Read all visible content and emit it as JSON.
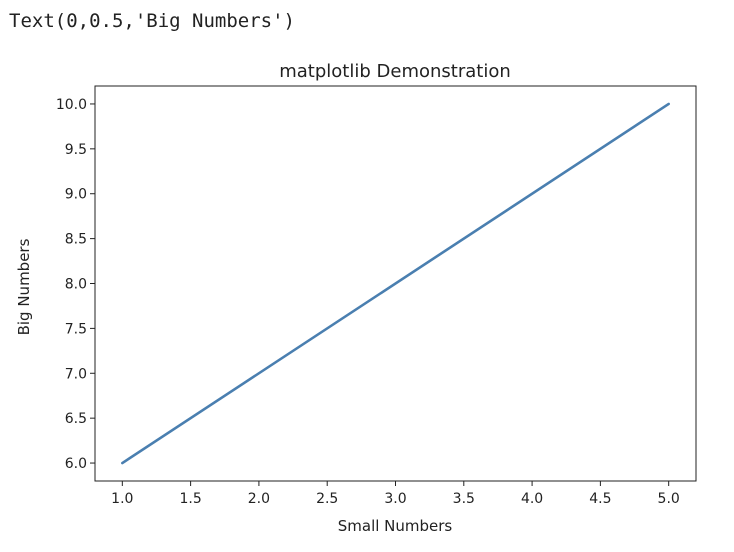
{
  "cell_output": {
    "text": "Text(0,0.5,'Big Numbers')"
  },
  "chart_data": {
    "type": "line",
    "title": "matplotlib Demonstration",
    "xlabel": "Small Numbers",
    "ylabel": "Big Numbers",
    "x": [
      1,
      5
    ],
    "series": [
      {
        "name": "line",
        "values": [
          6,
          10
        ],
        "color": "#4a7fb0"
      }
    ],
    "xlim": [
      0.8,
      5.2
    ],
    "ylim": [
      5.8,
      10.2
    ],
    "xticks": [
      1.0,
      1.5,
      2.0,
      2.5,
      3.0,
      3.5,
      4.0,
      4.5,
      5.0
    ],
    "xtick_labels": [
      "1.0",
      "1.5",
      "2.0",
      "2.5",
      "3.0",
      "3.5",
      "4.0",
      "4.5",
      "5.0"
    ],
    "yticks": [
      6.0,
      6.5,
      7.0,
      7.5,
      8.0,
      8.5,
      9.0,
      9.5,
      10.0
    ],
    "ytick_labels": [
      "6.0",
      "6.5",
      "7.0",
      "7.5",
      "8.0",
      "8.5",
      "9.0",
      "9.5",
      "10.0"
    ],
    "grid": false,
    "legend": false
  }
}
